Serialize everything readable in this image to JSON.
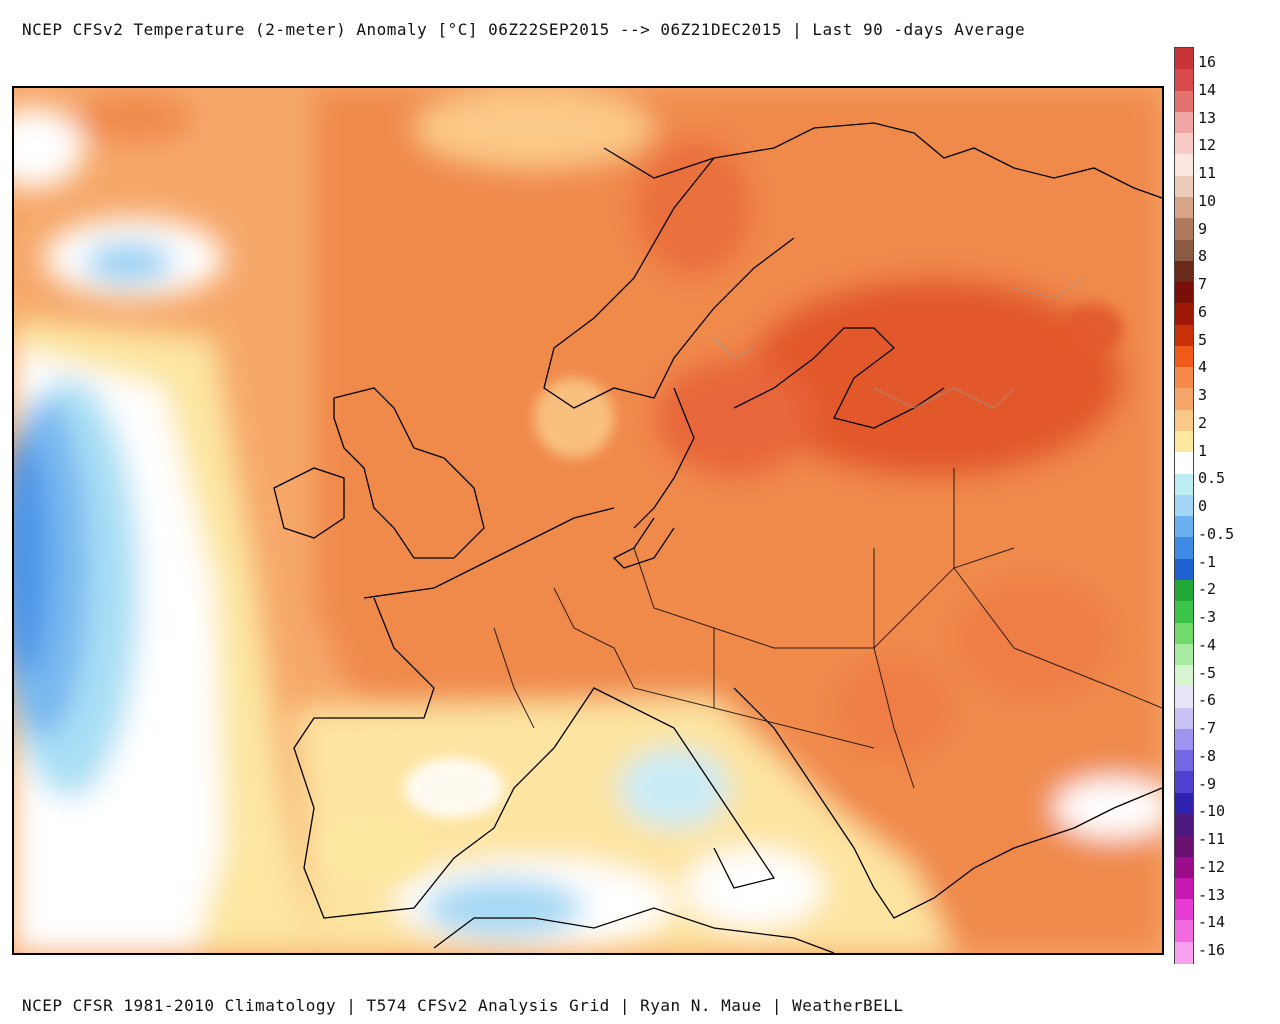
{
  "title": "NCEP CFSv2 Temperature (2-meter) Anomaly  [°C] 06Z22SEP2015 --> 06Z21DEC2015 | Last 90 -days Average",
  "footer": "NCEP CFSR 1981-2010 Climatology | T574 CFSv2 Analysis Grid | Ryan N. Maue | WeatherBELL",
  "map": {
    "region": "Europe",
    "variable": "2-meter temperature anomaly",
    "units": "°C"
  },
  "colorbar": {
    "labels": [
      "16",
      "14",
      "13",
      "12",
      "11",
      "10",
      "9",
      "8",
      "7",
      "6",
      "5",
      "4",
      "3",
      "2",
      "1",
      "0.5",
      "0",
      "-0.5",
      "-1",
      "-2",
      "-3",
      "-4",
      "-5",
      "-6",
      "-7",
      "-8",
      "-9",
      "-10",
      "-11",
      "-12",
      "-13",
      "-14",
      "-16"
    ],
    "colors": [
      "#c8343a",
      "#d94a4c",
      "#e4726e",
      "#f1a5a2",
      "#f8cbc7",
      "#fbe6e0",
      "#ebcab8",
      "#d8a58a",
      "#b07a60",
      "#8a5a42",
      "#6a2a1a",
      "#7a0f0a",
      "#a01808",
      "#c8300a",
      "#ef5a18",
      "#f58a4a",
      "#f7a66a",
      "#fbc987",
      "#fde9a0",
      "#ffffff",
      "#bcecf4",
      "#a3d6f6",
      "#6ab0f0",
      "#3e8be6",
      "#1e60d0",
      "#22a836",
      "#3cc448",
      "#72da6a",
      "#a6eba0",
      "#d6f6cf",
      "#e9e6fb",
      "#c9c3f5",
      "#9c94ef",
      "#7368e2",
      "#4e41cf",
      "#2e22ae",
      "#4a1a80",
      "#6a1070",
      "#9a0c8a",
      "#c818b2",
      "#e63cd4",
      "#f26ae0",
      "#f9a1ef"
    ]
  }
}
